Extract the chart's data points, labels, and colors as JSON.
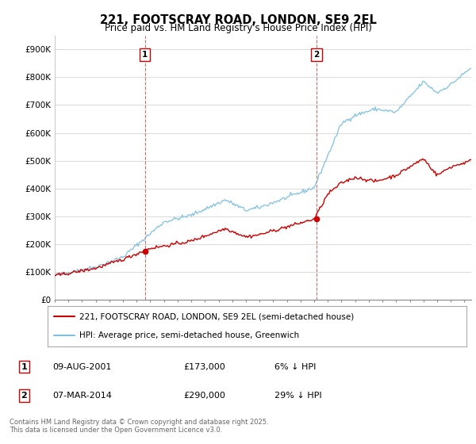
{
  "title": "221, FOOTSCRAY ROAD, LONDON, SE9 2EL",
  "subtitle": "Price paid vs. HM Land Registry's House Price Index (HPI)",
  "ylabel_ticks": [
    "£0",
    "£100K",
    "£200K",
    "£300K",
    "£400K",
    "£500K",
    "£600K",
    "£700K",
    "£800K",
    "£900K"
  ],
  "ytick_values": [
    0,
    100000,
    200000,
    300000,
    400000,
    500000,
    600000,
    700000,
    800000,
    900000
  ],
  "ylim": [
    0,
    950000
  ],
  "xlim_start": 1995.0,
  "xlim_end": 2025.5,
  "hpi_color": "#7fbfdf",
  "price_color": "#cc0000",
  "vline_color": "#cc0000",
  "transaction1_year": 2001.6,
  "transaction1_price": 173000,
  "transaction2_year": 2014.17,
  "transaction2_price": 290000,
  "legend_label1": "221, FOOTSCRAY ROAD, LONDON, SE9 2EL (semi-detached house)",
  "legend_label2": "HPI: Average price, semi-detached house, Greenwich",
  "table_row1": [
    "1",
    "09-AUG-2001",
    "£173,000",
    "6% ↓ HPI"
  ],
  "table_row2": [
    "2",
    "07-MAR-2014",
    "£290,000",
    "29% ↓ HPI"
  ],
  "footer": "Contains HM Land Registry data © Crown copyright and database right 2025.\nThis data is licensed under the Open Government Licence v3.0.",
  "bg_color": "#ffffff",
  "grid_color": "#cccccc"
}
